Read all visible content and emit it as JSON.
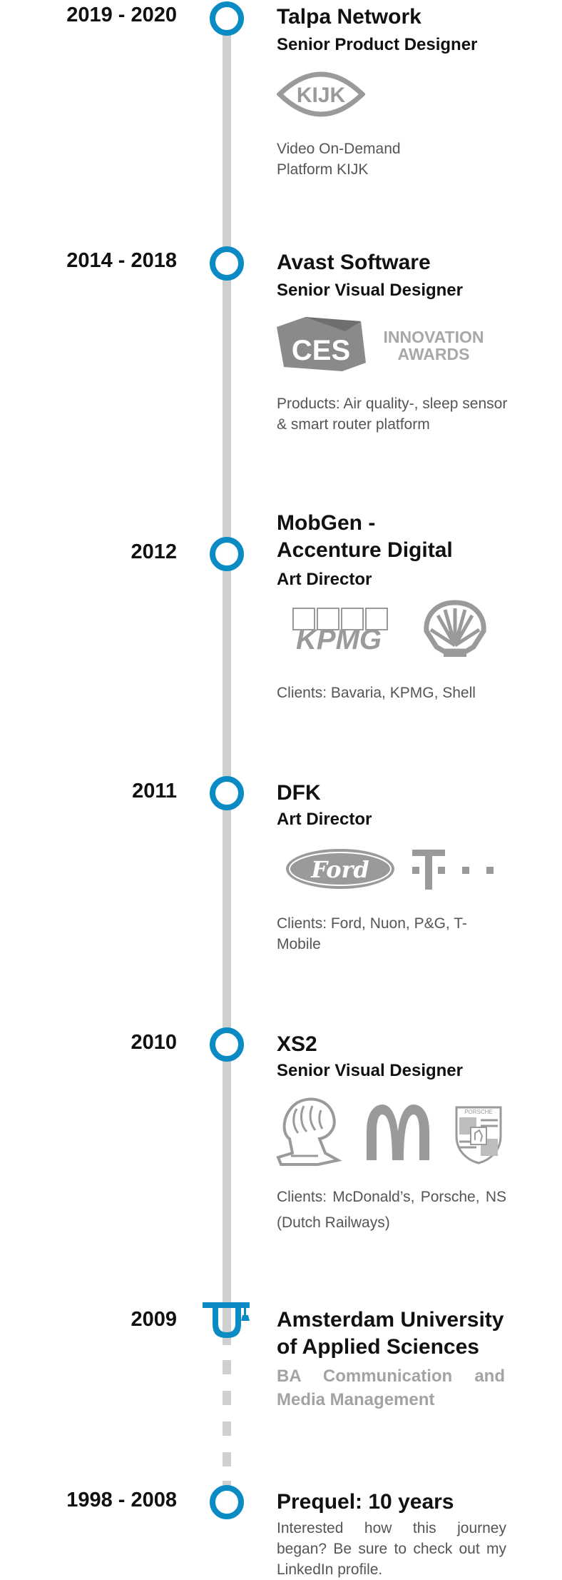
{
  "entries": [
    {
      "year": "2019 - 2020",
      "company": "Talpa Network",
      "role": "Senior Product Designer",
      "description": "Video On-Demand Platform KIJK",
      "logos": [
        "kijk-logo"
      ],
      "logo_text": {
        "kijk": "KIJK"
      }
    },
    {
      "year": "2014 - 2018",
      "company": "Avast Software",
      "role": "Senior Visual Designer",
      "description": "Products: Air quality-, sleep sensor & smart router platform",
      "logos": [
        "ces-innovation-awards-logo"
      ],
      "logo_text": {
        "ces": "CES",
        "innovation": "INNOVATION",
        "awards": "AWARDS"
      }
    },
    {
      "year": "2012",
      "company_line1": "MobGen -",
      "company_line2": "Accenture Digital",
      "role": "Art Director",
      "description": "Clients: Bavaria, KPMG, Shell",
      "logos": [
        "kpmg-logo",
        "shell-logo"
      ],
      "logo_text": {
        "kpmg": "KPMG"
      }
    },
    {
      "year": "2011",
      "company": "DFK",
      "role": "Art Director",
      "description": "Clients: Ford, Nuon, P&G, T-Mobile",
      "logos": [
        "ford-logo",
        "t-mobile-logo"
      ],
      "logo_text": {
        "ford": "Ford",
        "t": "T"
      }
    },
    {
      "year": "2010",
      "company": "XS2",
      "role": "Senior Visual Designer",
      "description": "Clients: McDonald’s, Porsche, NS (Dutch Railways)",
      "logos": [
        "cannes-lions-logo",
        "mcdonalds-logo",
        "porsche-logo"
      ],
      "logo_text": {
        "porsche": "PORSCHE"
      }
    },
    {
      "year": "2009",
      "company_line1": "Amsterdam University",
      "company_line2": "of Applied Sciences",
      "role": "BA Communication and Media Management",
      "icon": "graduation-cap-icon"
    },
    {
      "year": "1998 - 2008",
      "company": "Prequel: 10 years",
      "description": "Interested how this journey began? Be sure to check out my LinkedIn profile."
    }
  ],
  "colors": {
    "accent": "#0a8bc4",
    "line": "#cfcfcf",
    "logo_grey": "#9a9a9a"
  }
}
